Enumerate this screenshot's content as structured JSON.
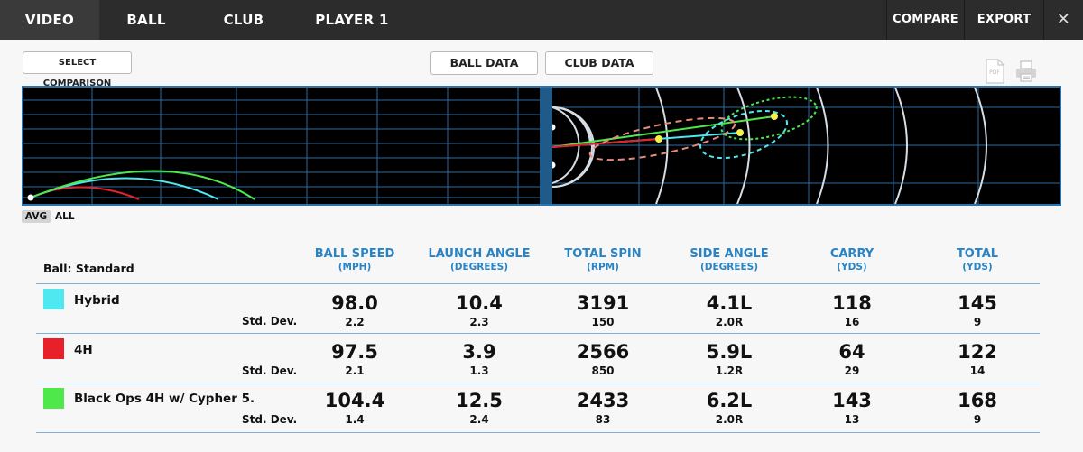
{
  "nav": {
    "tabs": [
      "VIDEO",
      "BALL",
      "CLUB",
      "PLAYER 1"
    ],
    "compare": "COMPARE",
    "export": "EXPORT",
    "close": "✕"
  },
  "controls": {
    "select_comparison": "SELECT COMPARISON",
    "ball_data": "BALL DATA",
    "club_data": "CLUB DATA",
    "pdf_icon_text": "PDF"
  },
  "view_toggle": {
    "avg": "AVG",
    "all": "ALL"
  },
  "colors": {
    "hybrid": "#4fe7f0",
    "h4": "#e8202a",
    "blackops": "#4ee84a",
    "accent": "#2a84c4"
  },
  "table": {
    "ball_label": "Ball: Standard",
    "std_dev_label": "Std. Dev.",
    "columns": [
      {
        "title": "BALL SPEED",
        "unit": "(MPH)"
      },
      {
        "title": "LAUNCH ANGLE",
        "unit": "(DEGREES)"
      },
      {
        "title": "TOTAL SPIN",
        "unit": "(RPM)"
      },
      {
        "title": "SIDE ANGLE",
        "unit": "(DEGREES)"
      },
      {
        "title": "CARRY",
        "unit": "(YDS)"
      },
      {
        "title": "TOTAL",
        "unit": "(YDS)"
      }
    ],
    "rows": [
      {
        "name": "Hybrid",
        "values": [
          "98.0",
          "10.4",
          "3191",
          "4.1L",
          "118",
          "145"
        ],
        "std": [
          "2.2",
          "2.3",
          "150",
          "2.0R",
          "16",
          "9"
        ]
      },
      {
        "name": "4H",
        "values": [
          "97.5",
          "3.9",
          "2566",
          "5.9L",
          "64",
          "122"
        ],
        "std": [
          "2.1",
          "1.3",
          "850",
          "1.2R",
          "29",
          "14"
        ]
      },
      {
        "name": "Black Ops 4H w/ Cypher 5.",
        "values": [
          "104.4",
          "12.5",
          "2433",
          "6.2L",
          "143",
          "168"
        ],
        "std": [
          "1.4",
          "2.4",
          "83",
          "2.0R",
          "13",
          "9"
        ]
      }
    ]
  }
}
